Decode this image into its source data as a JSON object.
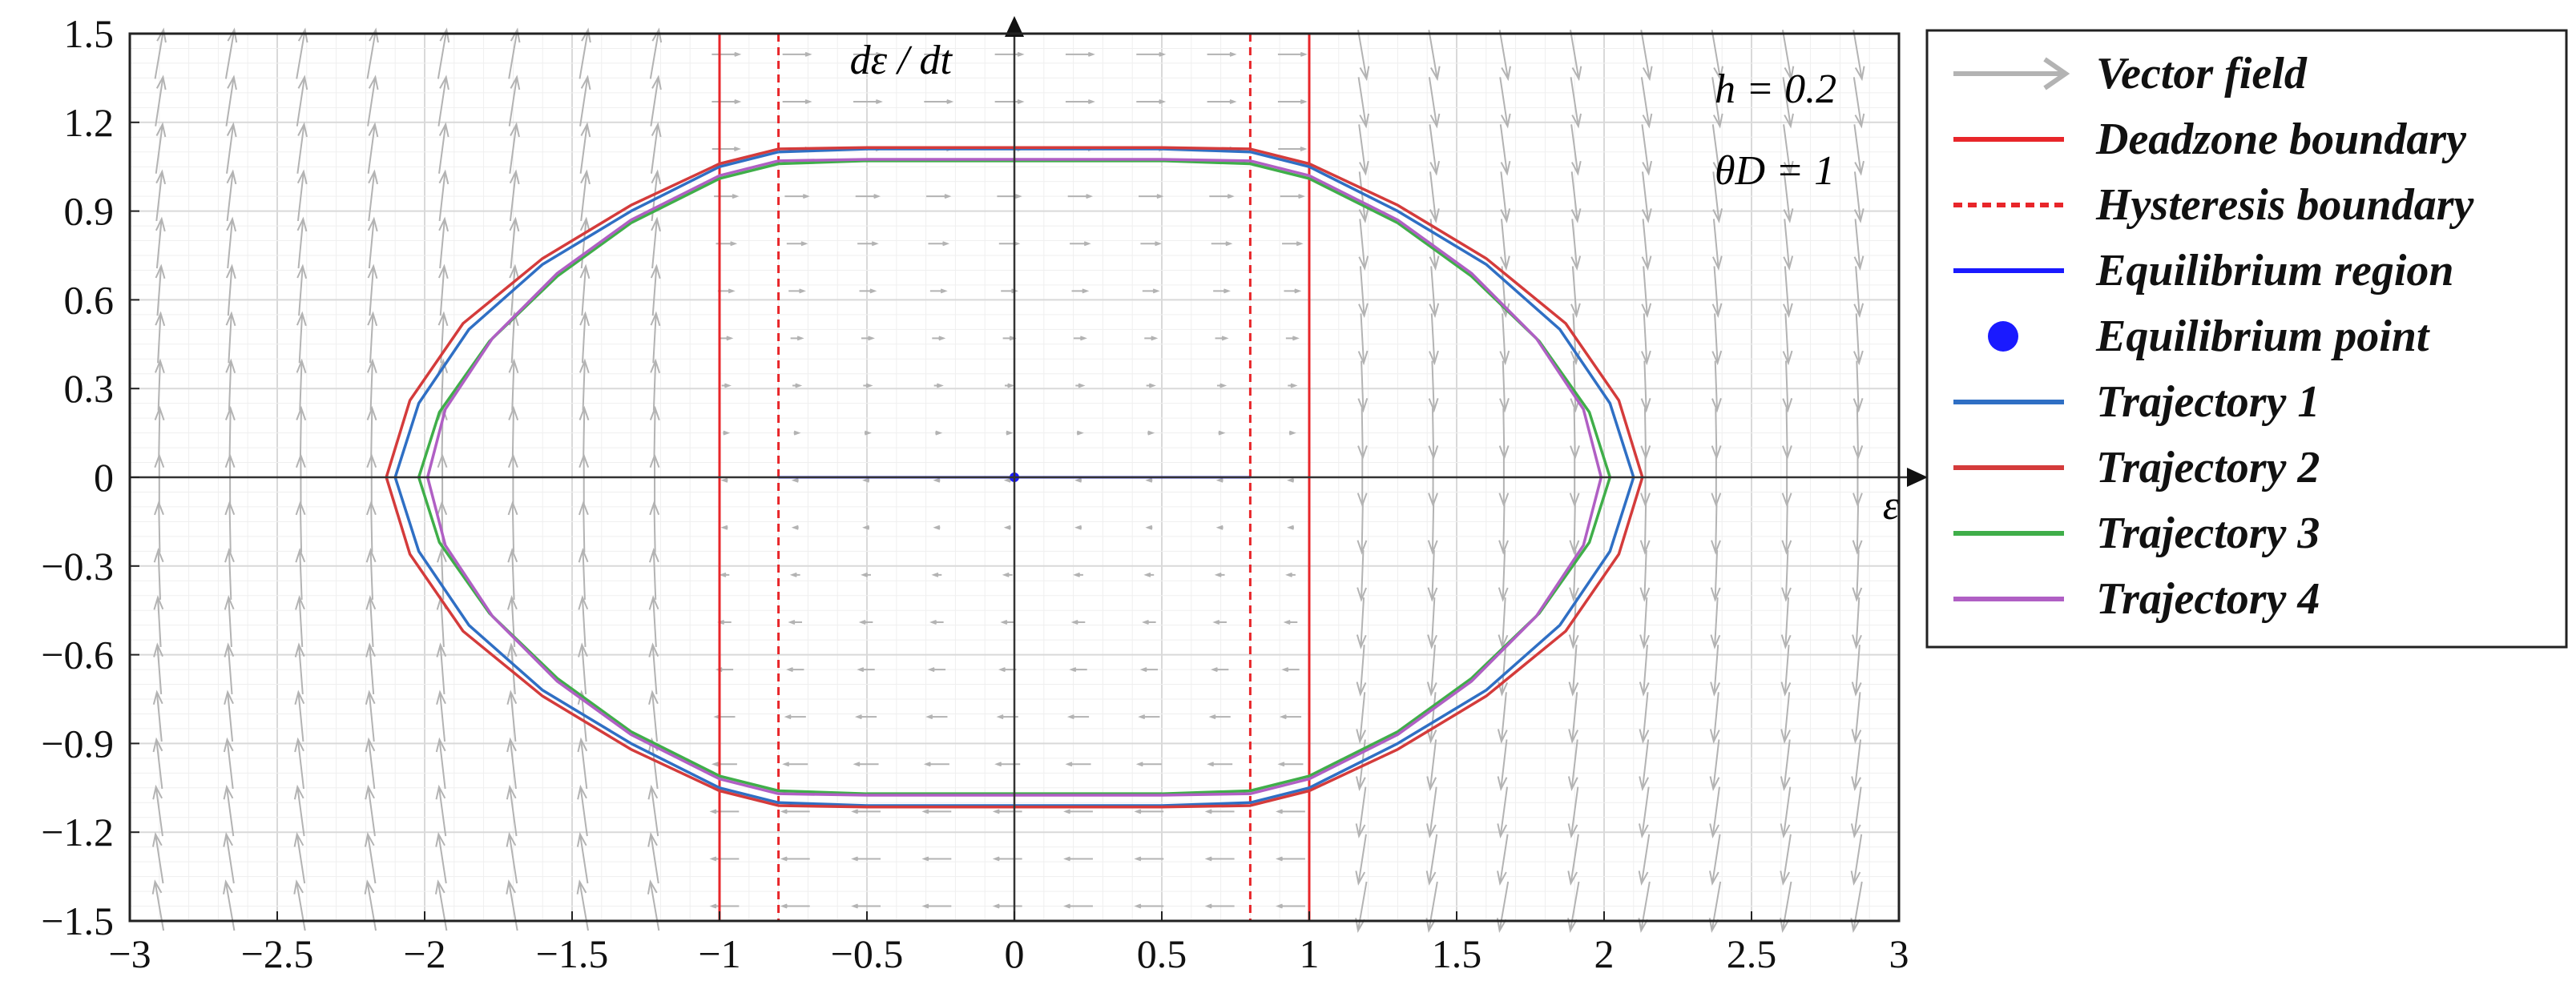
{
  "chart_data": {
    "type": "line",
    "title": "",
    "xlabel": "ε",
    "ylabel": "dε / dt",
    "xlim": [
      -3,
      3
    ],
    "ylim": [
      -1.5,
      1.5
    ],
    "x_ticks": [
      -3,
      -2.5,
      -2,
      -1.5,
      -1,
      -0.5,
      0,
      0.5,
      1,
      1.5,
      2,
      2.5,
      3
    ],
    "x_tick_labels": [
      "−3",
      "−2.5",
      "−2",
      "−1.5",
      "−1",
      "−0.5",
      "0",
      "0.5",
      "1",
      "1.5",
      "2",
      "2.5",
      "3"
    ],
    "y_ticks": [
      -1.5,
      -1.2,
      -0.9,
      -0.6,
      -0.3,
      0,
      0.3,
      0.6,
      0.9,
      1.2,
      1.5
    ],
    "y_tick_labels": [
      "−1.5",
      "−1.2",
      "−0.9",
      "−0.6",
      "−0.3",
      "0",
      "0.3",
      "0.6",
      "0.9",
      "1.2",
      "1.5"
    ],
    "grid": true,
    "legend_position": "outside-right",
    "annotations": [
      {
        "text": "h = 0.2",
        "x": 2.45,
        "y": 1.32
      },
      {
        "text": "θD = 1",
        "x": 2.45,
        "y": 1.05
      }
    ],
    "vector_field": {
      "name": "Vector field",
      "color": "#b3b3b3",
      "x_range": [
        -2.9,
        2.9
      ],
      "y_range": [
        -1.45,
        1.45
      ],
      "x_step": 0.24,
      "y_step": 0.16,
      "inside_deadzone_dx_scale": 0.12
    },
    "series": [
      {
        "name": "Deadzone boundary",
        "color": "#e8262a",
        "style": "solid",
        "kind": "vline",
        "x": [
          -1,
          1
        ]
      },
      {
        "name": "Hysteresis boundary",
        "color": "#e8262a",
        "style": "dashed",
        "kind": "vline",
        "x": [
          -0.8,
          0.8
        ]
      },
      {
        "name": "Equilibrium region",
        "color": "#1a1aff",
        "style": "solid",
        "kind": "segment",
        "points": [
          [
            -0.8,
            0
          ],
          [
            0.8,
            0
          ]
        ]
      },
      {
        "name": "Equilibrium point",
        "color": "#1a1aff",
        "style": "marker",
        "kind": "point",
        "points": [
          [
            0,
            0
          ]
        ]
      },
      {
        "name": "Trajectory 1",
        "color": "#2f6fc4",
        "style": "solid",
        "kind": "curve",
        "points": [
          [
            -0.8,
            1.1
          ],
          [
            -0.5,
            1.11
          ],
          [
            0,
            1.11
          ],
          [
            0.5,
            1.11
          ],
          [
            0.8,
            1.1
          ],
          [
            1.0,
            1.05
          ],
          [
            1.3,
            0.9
          ],
          [
            1.6,
            0.72
          ],
          [
            1.85,
            0.5
          ],
          [
            2.02,
            0.25
          ],
          [
            2.1,
            0
          ],
          [
            2.02,
            -0.25
          ],
          [
            1.85,
            -0.5
          ],
          [
            1.6,
            -0.72
          ],
          [
            1.3,
            -0.9
          ],
          [
            1.0,
            -1.05
          ],
          [
            0.8,
            -1.1
          ],
          [
            0.5,
            -1.11
          ],
          [
            0,
            -1.11
          ],
          [
            -0.5,
            -1.11
          ],
          [
            -0.8,
            -1.1
          ],
          [
            -1.0,
            -1.05
          ],
          [
            -1.3,
            -0.9
          ],
          [
            -1.6,
            -0.72
          ],
          [
            -1.85,
            -0.5
          ],
          [
            -2.02,
            -0.25
          ],
          [
            -2.1,
            0
          ],
          [
            -2.02,
            0.25
          ],
          [
            -1.85,
            0.5
          ],
          [
            -1.6,
            0.72
          ],
          [
            -1.3,
            0.9
          ],
          [
            -1.0,
            1.05
          ],
          [
            -0.8,
            1.1
          ]
        ]
      },
      {
        "name": "Trajectory 2",
        "color": "#d43b3b",
        "style": "solid",
        "kind": "curve",
        "points": [
          [
            -0.8,
            1.11
          ],
          [
            -0.5,
            1.115
          ],
          [
            0,
            1.115
          ],
          [
            0.5,
            1.115
          ],
          [
            0.8,
            1.11
          ],
          [
            1.0,
            1.06
          ],
          [
            1.3,
            0.92
          ],
          [
            1.6,
            0.74
          ],
          [
            1.87,
            0.52
          ],
          [
            2.05,
            0.26
          ],
          [
            2.13,
            0
          ],
          [
            2.05,
            -0.26
          ],
          [
            1.87,
            -0.52
          ],
          [
            1.6,
            -0.74
          ],
          [
            1.3,
            -0.92
          ],
          [
            1.0,
            -1.06
          ],
          [
            0.8,
            -1.11
          ],
          [
            0.5,
            -1.115
          ],
          [
            0,
            -1.115
          ],
          [
            -0.5,
            -1.115
          ],
          [
            -0.8,
            -1.11
          ],
          [
            -1.0,
            -1.06
          ],
          [
            -1.3,
            -0.92
          ],
          [
            -1.6,
            -0.74
          ],
          [
            -1.87,
            -0.52
          ],
          [
            -2.05,
            -0.26
          ],
          [
            -2.13,
            0
          ],
          [
            -2.05,
            0.26
          ],
          [
            -1.87,
            0.52
          ],
          [
            -1.6,
            0.74
          ],
          [
            -1.3,
            0.92
          ],
          [
            -1.0,
            1.06
          ],
          [
            -0.8,
            1.11
          ]
        ]
      },
      {
        "name": "Trajectory 3",
        "color": "#3fae49",
        "style": "solid",
        "kind": "curve",
        "points": [
          [
            -0.8,
            1.06
          ],
          [
            -0.5,
            1.07
          ],
          [
            0,
            1.07
          ],
          [
            0.5,
            1.07
          ],
          [
            0.8,
            1.06
          ],
          [
            1.0,
            1.01
          ],
          [
            1.3,
            0.86
          ],
          [
            1.55,
            0.68
          ],
          [
            1.78,
            0.46
          ],
          [
            1.95,
            0.22
          ],
          [
            2.02,
            0
          ],
          [
            1.95,
            -0.22
          ],
          [
            1.78,
            -0.46
          ],
          [
            1.55,
            -0.68
          ],
          [
            1.3,
            -0.86
          ],
          [
            1.0,
            -1.01
          ],
          [
            0.8,
            -1.06
          ],
          [
            0.5,
            -1.07
          ],
          [
            0,
            -1.07
          ],
          [
            -0.5,
            -1.07
          ],
          [
            -0.8,
            -1.06
          ],
          [
            -1.0,
            -1.01
          ],
          [
            -1.3,
            -0.86
          ],
          [
            -1.55,
            -0.68
          ],
          [
            -1.78,
            -0.46
          ],
          [
            -1.95,
            -0.22
          ],
          [
            -2.02,
            0
          ],
          [
            -1.95,
            0.22
          ],
          [
            -1.78,
            0.46
          ],
          [
            -1.55,
            0.68
          ],
          [
            -1.3,
            0.86
          ],
          [
            -1.0,
            1.01
          ],
          [
            -0.8,
            1.06
          ]
        ]
      },
      {
        "name": "Trajectory 4",
        "color": "#b05fc4",
        "style": "solid",
        "kind": "curve",
        "points": [
          [
            -0.8,
            1.07
          ],
          [
            -0.5,
            1.075
          ],
          [
            0,
            1.075
          ],
          [
            0.5,
            1.075
          ],
          [
            0.8,
            1.07
          ],
          [
            1.0,
            1.02
          ],
          [
            1.3,
            0.87
          ],
          [
            1.55,
            0.69
          ],
          [
            1.77,
            0.47
          ],
          [
            1.93,
            0.23
          ],
          [
            1.99,
            0
          ],
          [
            1.93,
            -0.23
          ],
          [
            1.77,
            -0.47
          ],
          [
            1.55,
            -0.69
          ],
          [
            1.3,
            -0.87
          ],
          [
            1.0,
            -1.02
          ],
          [
            0.8,
            -1.07
          ],
          [
            0.5,
            -1.075
          ],
          [
            0,
            -1.075
          ],
          [
            -0.5,
            -1.075
          ],
          [
            -0.8,
            -1.07
          ],
          [
            -1.0,
            -1.02
          ],
          [
            -1.3,
            -0.87
          ],
          [
            -1.55,
            -0.69
          ],
          [
            -1.77,
            -0.47
          ],
          [
            -1.93,
            -0.23
          ],
          [
            -1.99,
            0
          ],
          [
            -1.93,
            0.23
          ],
          [
            -1.77,
            0.47
          ],
          [
            -1.55,
            0.69
          ],
          [
            -1.3,
            0.87
          ],
          [
            -1.0,
            1.02
          ],
          [
            -0.8,
            1.07
          ]
        ]
      }
    ]
  }
}
